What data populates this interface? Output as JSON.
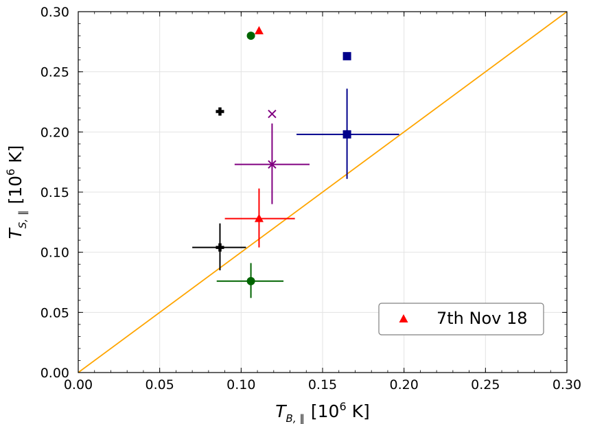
{
  "chart_data": {
    "type": "scatter",
    "xlabel": {
      "main": "T",
      "sub": "B, ∥",
      "unit_pre": "[10",
      "unit_exp": "6",
      "unit_post": " K]"
    },
    "ylabel": {
      "main": "T",
      "sub": "S, ∥",
      "unit_pre": "[10",
      "unit_exp": "6",
      "unit_post": " K]"
    },
    "xlim": [
      0,
      0.3
    ],
    "ylim": [
      0,
      0.3
    ],
    "xticks": [
      "0.00",
      "0.05",
      "0.10",
      "0.15",
      "0.20",
      "0.25",
      "0.30"
    ],
    "yticks": [
      "0.00",
      "0.05",
      "0.10",
      "0.15",
      "0.20",
      "0.25",
      "0.30"
    ],
    "grid": true,
    "reference_line": {
      "label": "y = x",
      "color": "#ffa500",
      "from": [
        0,
        0
      ],
      "to": [
        0.3,
        0.3
      ]
    },
    "series": [
      {
        "name": "circle",
        "marker": "circle",
        "color": "#006400",
        "points": [
          {
            "x": 0.106,
            "y": 0.28
          }
        ],
        "errorbar_points": [
          {
            "x": 0.106,
            "y": 0.076,
            "xerr": [
              0.021,
              0.02
            ],
            "yerr": [
              0.014,
              0.015
            ]
          }
        ]
      },
      {
        "name": "7th Nov 18",
        "marker": "triangle",
        "color": "#ff0000",
        "points": [
          {
            "x": 0.111,
            "y": 0.284
          }
        ],
        "errorbar_points": [
          {
            "x": 0.111,
            "y": 0.128,
            "xerr": [
              0.021,
              0.022
            ],
            "yerr": [
              0.024,
              0.025
            ]
          }
        ]
      },
      {
        "name": "square",
        "marker": "square",
        "color": "#00008b",
        "points": [
          {
            "x": 0.165,
            "y": 0.263
          }
        ],
        "errorbar_points": [
          {
            "x": 0.165,
            "y": 0.198,
            "xerr": [
              0.031,
              0.032
            ],
            "yerr": [
              0.037,
              0.038
            ]
          }
        ]
      },
      {
        "name": "x",
        "marker": "x",
        "color": "#800080",
        "points": [
          {
            "x": 0.119,
            "y": 0.215
          }
        ],
        "errorbar_points": [
          {
            "x": 0.119,
            "y": 0.173,
            "xerr": [
              0.023,
              0.023
            ],
            "yerr": [
              0.033,
              0.034
            ]
          }
        ]
      },
      {
        "name": "plus",
        "marker": "plus",
        "color": "#000000",
        "points": [
          {
            "x": 0.087,
            "y": 0.217
          }
        ],
        "errorbar_points": [
          {
            "x": 0.087,
            "y": 0.104,
            "xerr": [
              0.017,
              0.016
            ],
            "yerr": [
              0.019,
              0.02
            ]
          }
        ]
      }
    ],
    "legend": {
      "entries": [
        {
          "label": "7th Nov 18",
          "marker": "triangle",
          "color": "#ff0000"
        }
      ],
      "position": "lower-right"
    }
  }
}
